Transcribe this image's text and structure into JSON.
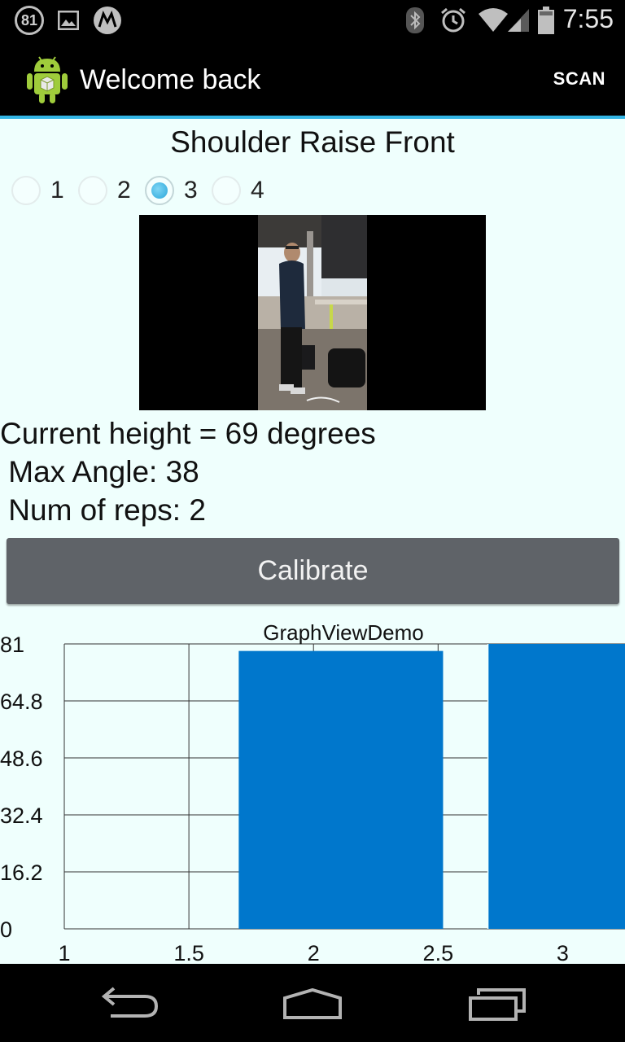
{
  "status_bar": {
    "notification_count": "81",
    "time": "7:55",
    "icons": [
      "notification-badge",
      "image-icon",
      "motorola-icon",
      "bluetooth-icon",
      "alarm-icon",
      "wifi-icon",
      "signal-icon",
      "battery-icon"
    ]
  },
  "action_bar": {
    "title": "Welcome back",
    "scan_label": "SCAN",
    "accent_color": "#33b5e5"
  },
  "exercise": {
    "title": "Shoulder Raise Front",
    "options": [
      "1",
      "2",
      "3",
      "4"
    ],
    "selected": "3"
  },
  "stats": {
    "current_height": "Current height = 69 degrees",
    "max_angle": " Max Angle: 38",
    "num_reps": " Num of reps: 2"
  },
  "calibrate_label": "Calibrate",
  "chart_data": {
    "type": "bar",
    "title": "GraphViewDemo",
    "x": [
      1.5,
      2.5
    ],
    "values": [
      79,
      81
    ],
    "xlim": [
      1,
      3.25
    ],
    "ylim": [
      0,
      81
    ],
    "xticks": [
      "1",
      "1.5",
      "2",
      "2.5",
      "3"
    ],
    "yticks": [
      "81",
      "64.8",
      "48.6",
      "32.4",
      "16.2",
      "0"
    ],
    "bar_color": "#0077cc",
    "grid": true
  },
  "nav_bar": {
    "icons": [
      "back-icon",
      "home-icon",
      "recent-apps-icon"
    ]
  }
}
